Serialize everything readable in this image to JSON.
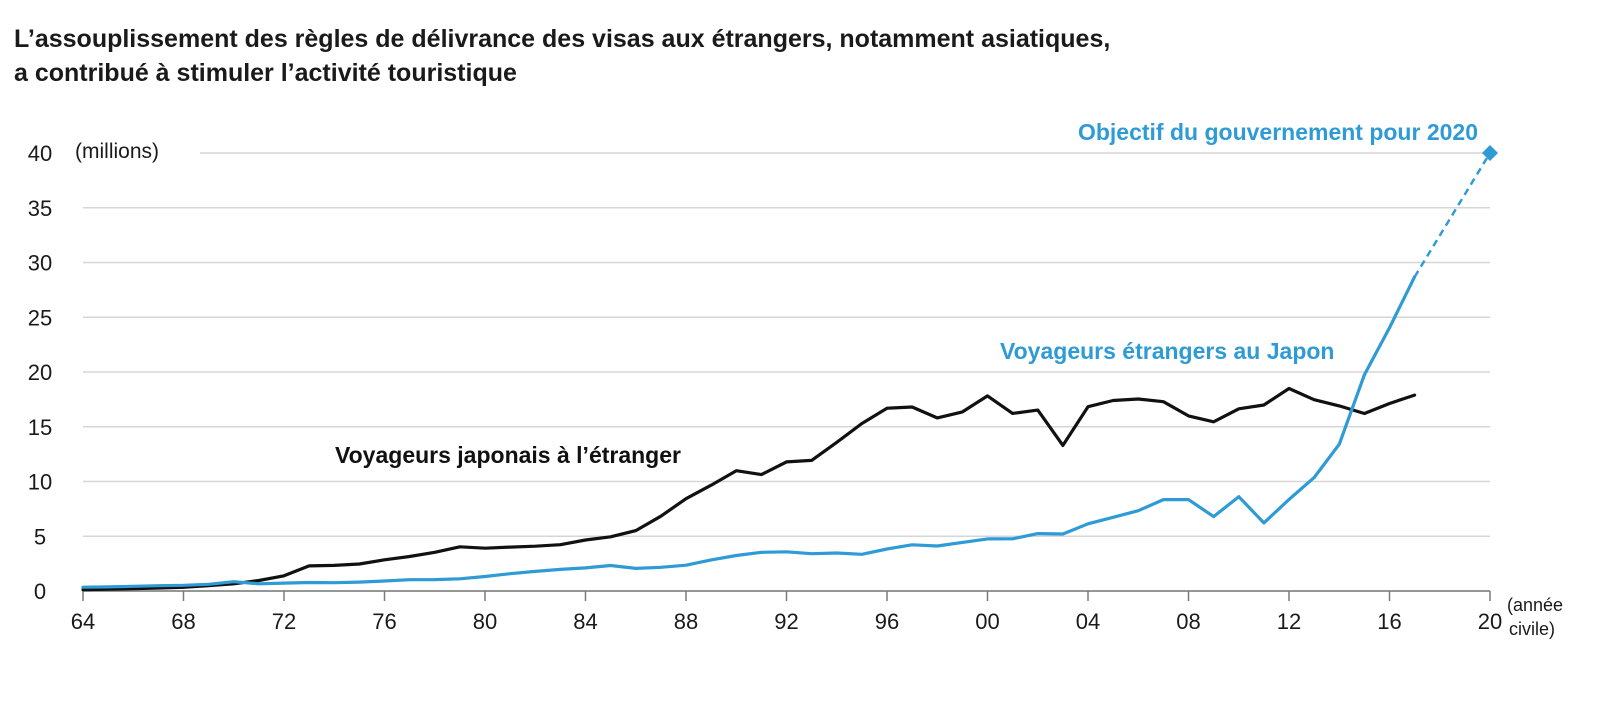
{
  "title": {
    "line1": "L’assouplissement des règles de délivrance des visas aux étrangers, notamment asiatiques,",
    "line2": "a contribué à stimuler l’activité touristique"
  },
  "chart_data": {
    "type": "line",
    "y_unit_label": "(millions)",
    "x_unit_label_1": "(année",
    "x_unit_label_2": "civile)",
    "x_ticks": [
      "64",
      "68",
      "72",
      "76",
      "80",
      "84",
      "88",
      "92",
      "96",
      "00",
      "04",
      "08",
      "12",
      "16",
      "20"
    ],
    "x_tick_values": [
      1964,
      1968,
      1972,
      1976,
      1980,
      1984,
      1988,
      1992,
      1996,
      2000,
      2004,
      2008,
      2012,
      2016,
      2020
    ],
    "y_ticks": [
      0,
      5,
      10,
      15,
      20,
      25,
      30,
      35,
      40
    ],
    "xlim": [
      1964,
      2020
    ],
    "ylim": [
      0,
      40
    ],
    "grid": "horizontal",
    "colors": {
      "japanese": "#111111",
      "foreign": "#2e9bd6"
    },
    "series": [
      {
        "name": "Voyageurs japonais à l’étranger",
        "color": "#111111",
        "x": [
          1964,
          1965,
          1966,
          1967,
          1968,
          1969,
          1970,
          1971,
          1972,
          1973,
          1974,
          1975,
          1976,
          1977,
          1978,
          1979,
          1980,
          1981,
          1982,
          1983,
          1984,
          1985,
          1986,
          1987,
          1988,
          1989,
          1990,
          1991,
          1992,
          1993,
          1994,
          1995,
          1996,
          1997,
          1998,
          1999,
          2000,
          2001,
          2002,
          2003,
          2004,
          2005,
          2006,
          2007,
          2008,
          2009,
          2010,
          2011,
          2012,
          2013,
          2014,
          2015,
          2016,
          2017
        ],
        "values": [
          0.13,
          0.16,
          0.21,
          0.27,
          0.34,
          0.49,
          0.66,
          0.96,
          1.39,
          2.29,
          2.34,
          2.47,
          2.85,
          3.15,
          3.53,
          4.04,
          3.91,
          4.01,
          4.09,
          4.23,
          4.66,
          4.95,
          5.52,
          6.83,
          8.43,
          9.66,
          10.99,
          10.63,
          11.79,
          11.93,
          13.58,
          15.3,
          16.69,
          16.8,
          15.81,
          16.36,
          17.82,
          16.22,
          16.52,
          13.3,
          16.83,
          17.4,
          17.53,
          17.29,
          15.99,
          15.45,
          16.64,
          16.99,
          18.49,
          17.47,
          16.9,
          16.21,
          17.12,
          17.89
        ]
      },
      {
        "name": "Voyageurs étrangers au Japon",
        "color": "#2e9bd6",
        "x": [
          1964,
          1965,
          1966,
          1967,
          1968,
          1969,
          1970,
          1971,
          1972,
          1973,
          1974,
          1975,
          1976,
          1977,
          1978,
          1979,
          1980,
          1981,
          1982,
          1983,
          1984,
          1985,
          1986,
          1987,
          1988,
          1989,
          1990,
          1991,
          1992,
          1993,
          1994,
          1995,
          1996,
          1997,
          1998,
          1999,
          2000,
          2001,
          2002,
          2003,
          2004,
          2005,
          2006,
          2007,
          2008,
          2009,
          2010,
          2011,
          2012,
          2013,
          2014,
          2015,
          2016,
          2017
        ],
        "values": [
          0.35,
          0.37,
          0.43,
          0.48,
          0.52,
          0.61,
          0.85,
          0.66,
          0.72,
          0.78,
          0.76,
          0.81,
          0.91,
          1.03,
          1.04,
          1.11,
          1.32,
          1.58,
          1.79,
          1.97,
          2.11,
          2.33,
          2.06,
          2.16,
          2.36,
          2.84,
          3.24,
          3.53,
          3.58,
          3.41,
          3.47,
          3.35,
          3.84,
          4.22,
          4.11,
          4.44,
          4.76,
          4.77,
          5.24,
          5.21,
          6.14,
          6.73,
          7.33,
          8.35,
          8.35,
          6.79,
          8.61,
          6.22,
          8.36,
          10.36,
          13.41,
          19.74,
          24.04,
          28.69
        ]
      }
    ],
    "target": {
      "name": "Objectif du gouvernement pour 2020",
      "x": 2020,
      "value": 40,
      "from_x": 2017,
      "from_value": 28.69,
      "style": "dashed",
      "color": "#2e9bd6"
    }
  }
}
